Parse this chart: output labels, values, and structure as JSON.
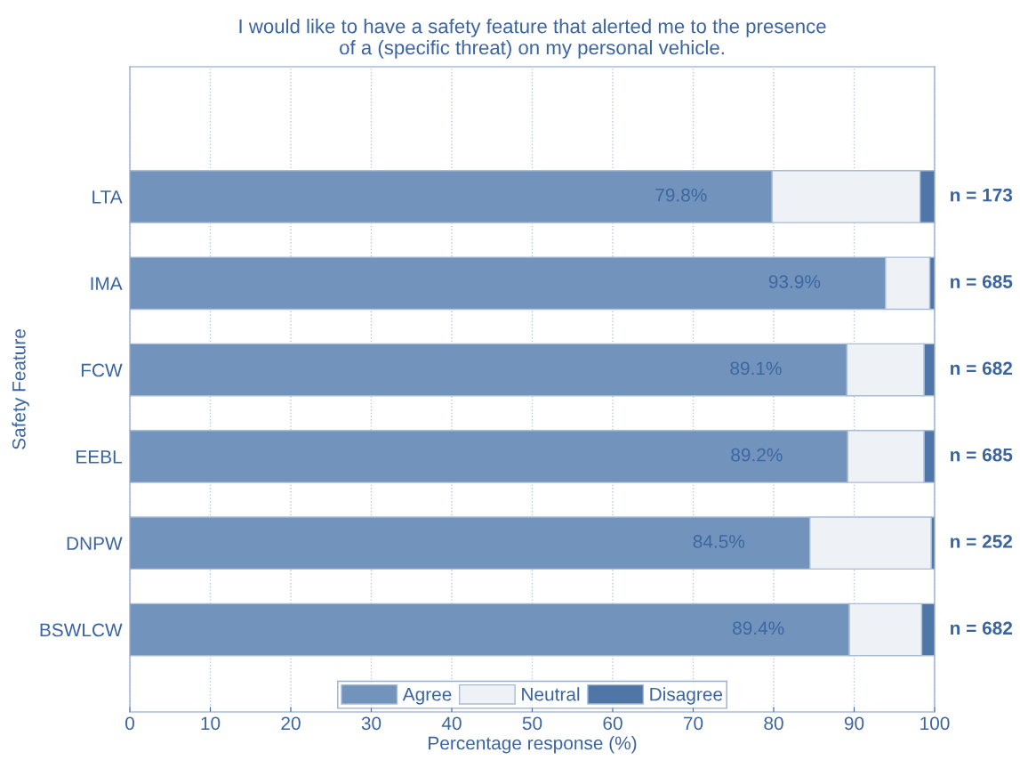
{
  "chart_data": {
    "type": "bar",
    "orientation": "horizontal",
    "stacked": true,
    "title": "I would like to have a safety feature that alerted me to the presence\nof a (specific threat) on my personal vehicle.",
    "xlabel": "Percentage response (%)",
    "ylabel": "Safety Feature",
    "categories": [
      "LTA",
      "IMA",
      "FCW",
      "EEBL",
      "DNPW",
      "BSWLCW"
    ],
    "series": [
      {
        "name": "Agree",
        "color": "#7293bb",
        "values": [
          79.8,
          93.9,
          89.1,
          89.2,
          84.5,
          89.4
        ],
        "value_labels": [
          "79.8%",
          "93.9%",
          "89.1%",
          "89.2%",
          "84.5%",
          "89.4%"
        ]
      },
      {
        "name": "Neutral",
        "color": "#eef2f7",
        "values": [
          18.4,
          5.5,
          9.6,
          9.5,
          15.1,
          9.0
        ]
      },
      {
        "name": "Disagree",
        "color": "#4f76a6",
        "values": [
          1.8,
          0.6,
          1.3,
          1.3,
          0.4,
          1.6
        ]
      }
    ],
    "xlim": [
      0,
      100
    ],
    "xticks": [
      0,
      10,
      20,
      30,
      40,
      50,
      60,
      70,
      80,
      90,
      100
    ],
    "grid": "x",
    "legend": "bottom",
    "annotations": [
      "n = 173",
      "n = 685",
      "n = 682",
      "n = 685",
      "n = 252",
      "n = 682"
    ]
  }
}
